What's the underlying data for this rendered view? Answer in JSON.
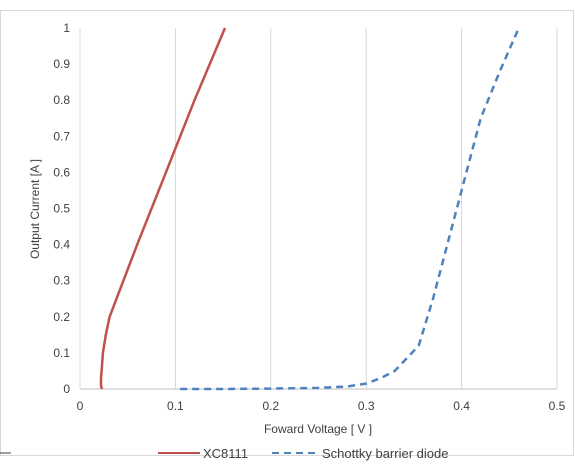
{
  "chart_data": {
    "type": "line",
    "title": "",
    "xlabel": "Foward Voltage  [ V ]",
    "ylabel": "Output Current  [A ]",
    "xlim": [
      0,
      0.5
    ],
    "ylim": [
      0,
      1
    ],
    "xticks": [
      "0",
      "0.1",
      "0.2",
      "0.3",
      "0.4",
      "0.5"
    ],
    "yticks": [
      "0",
      "0.1",
      "0.2",
      "0.3",
      "0.4",
      "0.5",
      "0.6",
      "0.7",
      "0.8",
      "0.9",
      "1"
    ],
    "grid": "vertical",
    "legend": "bottom",
    "series": [
      {
        "name": "XC8111",
        "color": "#c0504d",
        "style": "solid",
        "points": [
          [
            0.023,
            0.0
          ],
          [
            0.022,
            0.01
          ],
          [
            0.022,
            0.03
          ],
          [
            0.023,
            0.06
          ],
          [
            0.024,
            0.1
          ],
          [
            0.027,
            0.15
          ],
          [
            0.031,
            0.2
          ],
          [
            0.06,
            0.4
          ],
          [
            0.09,
            0.6
          ],
          [
            0.12,
            0.8
          ],
          [
            0.152,
            1.0
          ]
        ]
      },
      {
        "name": "Schottky barrier diode",
        "color": "#4f81bd",
        "style": "dashed",
        "points": [
          [
            0.105,
            0.0
          ],
          [
            0.15,
            0.0
          ],
          [
            0.2,
            0.001
          ],
          [
            0.25,
            0.003
          ],
          [
            0.28,
            0.007
          ],
          [
            0.3,
            0.015
          ],
          [
            0.315,
            0.03
          ],
          [
            0.33,
            0.05
          ],
          [
            0.355,
            0.12
          ],
          [
            0.37,
            0.25
          ],
          [
            0.385,
            0.4
          ],
          [
            0.4,
            0.55
          ],
          [
            0.42,
            0.75
          ],
          [
            0.44,
            0.88
          ],
          [
            0.46,
            1.0
          ]
        ]
      }
    ]
  }
}
